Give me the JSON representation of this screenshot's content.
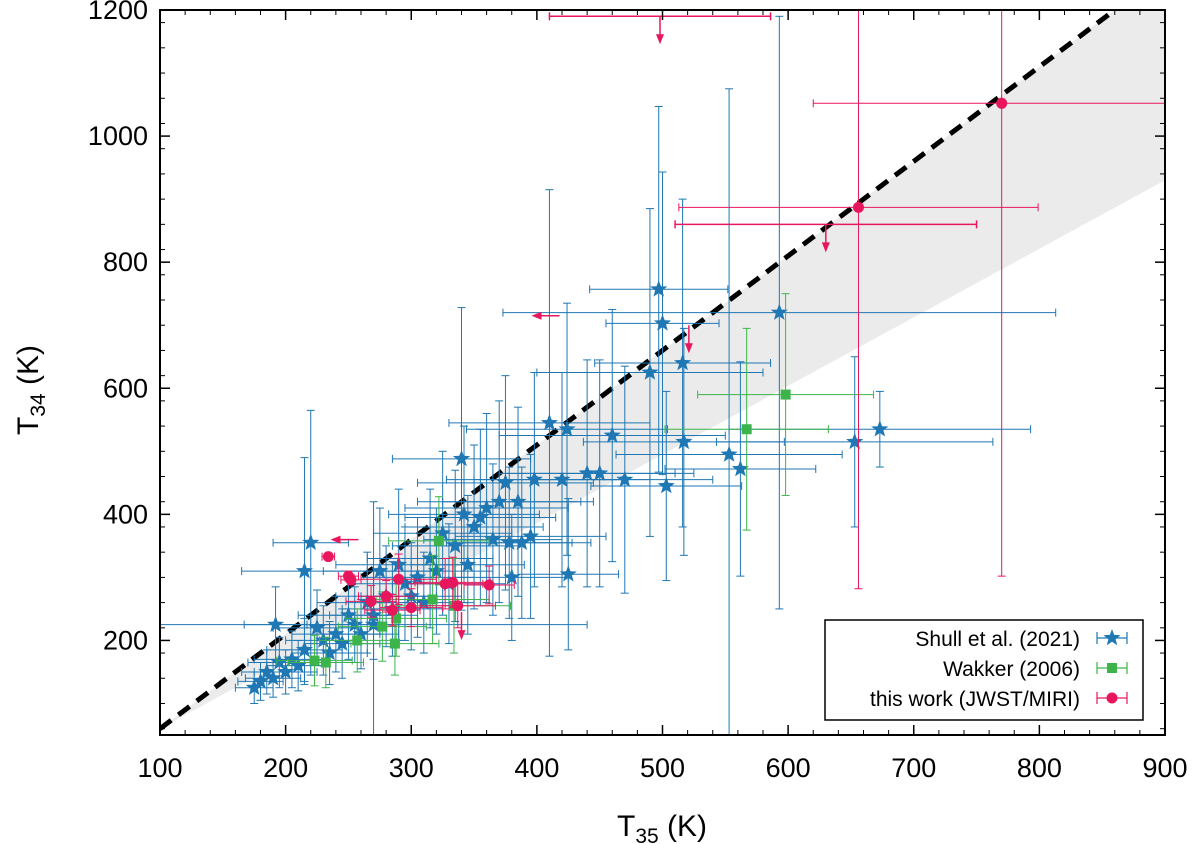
{
  "chart_data": {
    "type": "scatter",
    "xlabel": "T",
    "xlabel_sub": "35",
    "xlabel_unit": " (K)",
    "ylabel": "T",
    "ylabel_sub": "34",
    "ylabel_unit": " (K)",
    "xlim": [
      100,
      900
    ],
    "ylim": [
      50,
      1200
    ],
    "xticks": [
      100,
      200,
      300,
      400,
      500,
      600,
      700,
      800,
      900
    ],
    "yticks": [
      200,
      400,
      600,
      800,
      1000,
      1200
    ],
    "grid": false,
    "legend_position": "bottom-right",
    "fit_line": {
      "x": [
        100,
        860
      ],
      "y": [
        60,
        1200
      ],
      "color": "#000000",
      "style": "dashed"
    },
    "shaded_band": {
      "color": "#ebebeb",
      "upper": [
        [
          100,
          60
        ],
        [
          860,
          1200
        ],
        [
          900,
          1200
        ]
      ],
      "lower": [
        [
          100,
          60
        ],
        [
          900,
          930
        ]
      ]
    },
    "series": [
      {
        "name": "Shull et al. (2021)",
        "marker": "star",
        "color": "#1f77b4",
        "points": [
          {
            "x": 175,
            "y": 125,
            "xe": 15,
            "ye": 25
          },
          {
            "x": 180,
            "y": 135,
            "xe": 18,
            "ye": 30
          },
          {
            "x": 185,
            "y": 150,
            "xe": 20,
            "ye": 35
          },
          {
            "x": 190,
            "y": 140,
            "xe": 22,
            "ye": 30
          },
          {
            "x": 195,
            "y": 165,
            "xe": 25,
            "ye": 40
          },
          {
            "x": 192,
            "y": 225,
            "xe": 25,
            "ye": 60
          },
          {
            "x": 200,
            "y": 150,
            "xe": 25,
            "ye": 35
          },
          {
            "x": 205,
            "y": 170,
            "xe": 30,
            "ye": 45
          },
          {
            "x": 210,
            "y": 160,
            "xe": 25,
            "ye": 40
          },
          {
            "x": 215,
            "y": 185,
            "xe": 30,
            "ye": 50
          },
          {
            "x": 215,
            "y": 310,
            "xe": 50,
            "ye": 180
          },
          {
            "x": 220,
            "y": 355,
            "xe": 30,
            "ye": 210
          },
          {
            "x": 225,
            "y": 220,
            "xe": 35,
            "ye": 60
          },
          {
            "x": 230,
            "y": 200,
            "xe": 30,
            "ye": 55
          },
          {
            "x": 235,
            "y": 180,
            "xe": 30,
            "ye": 50
          },
          {
            "x": 240,
            "y": 210,
            "xe": 35,
            "ye": 60
          },
          {
            "x": 245,
            "y": 195,
            "xe": 30,
            "ye": 55
          },
          {
            "x": 250,
            "y": 240,
            "xe": 40,
            "ye": 70
          },
          {
            "x": 255,
            "y": 225,
            "xe": 35,
            "ye": 60
          },
          {
            "x": 260,
            "y": 210,
            "xe": 30,
            "ye": 55
          },
          {
            "x": 265,
            "y": 260,
            "xe": 40,
            "ye": 80
          },
          {
            "x": 270,
            "y": 240,
            "xe": 35,
            "ye": 70
          },
          {
            "x": 275,
            "y": 310,
            "xe": 45,
            "ye": 100
          },
          {
            "x": 280,
            "y": 270,
            "xe": 40,
            "ye": 80
          },
          {
            "x": 285,
            "y": 250,
            "xe": 40,
            "ye": 75
          },
          {
            "x": 290,
            "y": 320,
            "xe": 50,
            "ye": 120
          },
          {
            "x": 295,
            "y": 290,
            "xe": 45,
            "ye": 90
          },
          {
            "x": 300,
            "y": 270,
            "xe": 40,
            "ye": 85
          },
          {
            "x": 305,
            "y": 300,
            "xe": 45,
            "ye": 95
          },
          {
            "x": 310,
            "y": 260,
            "xe": 40,
            "ye": 80
          },
          {
            "x": 315,
            "y": 330,
            "xe": 50,
            "ye": 110
          },
          {
            "x": 320,
            "y": 310,
            "xe": 45,
            "ye": 100
          },
          {
            "x": 325,
            "y": 370,
            "xe": 55,
            "ye": 130
          },
          {
            "x": 330,
            "y": 290,
            "xe": 45,
            "ye": 95
          },
          {
            "x": 335,
            "y": 350,
            "xe": 50,
            "ye": 120
          },
          {
            "x": 340,
            "y": 488,
            "xe": 55,
            "ye": 240
          },
          {
            "x": 342,
            "y": 400,
            "xe": 60,
            "ye": 140
          },
          {
            "x": 345,
            "y": 320,
            "xe": 45,
            "ye": 110
          },
          {
            "x": 350,
            "y": 380,
            "xe": 55,
            "ye": 130
          },
          {
            "x": 355,
            "y": 395,
            "xe": 60,
            "ye": 140
          },
          {
            "x": 360,
            "y": 410,
            "xe": 65,
            "ye": 150
          },
          {
            "x": 365,
            "y": 360,
            "xe": 55,
            "ye": 120
          },
          {
            "x": 370,
            "y": 420,
            "xe": 65,
            "ye": 160
          },
          {
            "x": 375,
            "y": 450,
            "xe": 70,
            "ye": 170
          },
          {
            "x": 378,
            "y": 355,
            "xe": 50,
            "ye": 120
          },
          {
            "x": 380,
            "y": 300,
            "xe": 45,
            "ye": 100
          },
          {
            "x": 385,
            "y": 420,
            "xe": 60,
            "ye": 150
          },
          {
            "x": 388,
            "y": 355,
            "xe": 55,
            "ye": 120
          },
          {
            "x": 395,
            "y": 365,
            "xe": 60,
            "ye": 130
          },
          {
            "x": 398,
            "y": 455,
            "xe": 70,
            "ye": 170
          },
          {
            "x": 410,
            "y": 545,
            "xe": 80,
            "ye": 370
          },
          {
            "x": 424,
            "y": 535,
            "xe": 80,
            "ye": 200
          },
          {
            "x": 425,
            "y": 305,
            "xe": 40,
            "ye": 120
          },
          {
            "x": 420,
            "y": 455,
            "xe": 70,
            "ye": 170
          },
          {
            "x": 440,
            "y": 465,
            "xe": 70,
            "ye": 180
          },
          {
            "x": 450,
            "y": 465,
            "xe": 75,
            "ye": 180
          },
          {
            "x": 460,
            "y": 525,
            "xe": 90,
            "ye": 200
          },
          {
            "x": 470,
            "y": 455,
            "xe": 70,
            "ye": 180
          },
          {
            "x": 490,
            "y": 625,
            "xe": 90,
            "ye": 260
          },
          {
            "x": 497,
            "y": 757,
            "xe": 55,
            "ye": 290
          },
          {
            "x": 500,
            "y": 703,
            "xe": 45,
            "ye": 240
          },
          {
            "x": 503,
            "y": 445,
            "xe": 60,
            "ye": 150
          },
          {
            "x": 516,
            "y": 640,
            "xe": 70,
            "ye": 260
          },
          {
            "x": 517,
            "y": 515,
            "xe": 80,
            "ye": 180
          },
          {
            "x": 553,
            "y": 495,
            "xe": 90,
            "ye": 580
          },
          {
            "x": 562,
            "y": 472,
            "xe": 60,
            "ye": 170
          },
          {
            "x": 593,
            "y": 720,
            "xe": 220,
            "ye": 470
          },
          {
            "x": 653,
            "y": 515,
            "xe": 110,
            "ye": 135
          },
          {
            "x": 673,
            "y": 535,
            "xe": 120,
            "ye": 60
          },
          {
            "x": 270,
            "y": 225,
            "xe": 170,
            "ye": 195
          }
        ]
      },
      {
        "name": "Wakker (2006)",
        "marker": "square",
        "color": "#3cb44b",
        "points": [
          {
            "x": 223,
            "y": 168,
            "xe": 30,
            "ye": 40
          },
          {
            "x": 232,
            "y": 165,
            "xe": 30,
            "ye": 40
          },
          {
            "x": 257,
            "y": 200,
            "xe": 30,
            "ye": 50
          },
          {
            "x": 277,
            "y": 222,
            "xe": 35,
            "ye": 55
          },
          {
            "x": 287,
            "y": 195,
            "xe": 35,
            "ye": 50
          },
          {
            "x": 288,
            "y": 235,
            "xe": 40,
            "ye": 60
          },
          {
            "x": 317,
            "y": 265,
            "xe": 45,
            "ye": 70
          },
          {
            "x": 322,
            "y": 358,
            "xe": 40,
            "ye": 70
          },
          {
            "x": 334,
            "y": 255,
            "xe": 45,
            "ye": 75
          },
          {
            "x": 567,
            "y": 535,
            "xe": 65,
            "ye": 160
          },
          {
            "x": 598,
            "y": 590,
            "xe": 70,
            "ye": 160
          }
        ]
      },
      {
        "name": "this work (JWST/MIRI)",
        "marker": "circle",
        "color": "#e8175d",
        "points": [
          {
            "x": 234,
            "y": 333,
            "xe": 5,
            "ye": 5
          },
          {
            "x": 250,
            "y": 302,
            "xe": 8,
            "ye": 8
          },
          {
            "x": 252,
            "y": 296,
            "xe": 8,
            "ye": 8
          },
          {
            "x": 268,
            "y": 262,
            "xe": 20,
            "ye": 25
          },
          {
            "x": 280,
            "y": 270,
            "xe": 22,
            "ye": 25
          },
          {
            "x": 285,
            "y": 248,
            "xe": 22,
            "ye": 25
          },
          {
            "x": 290,
            "y": 297,
            "xe": 30,
            "ye": 40
          },
          {
            "x": 300,
            "y": 252,
            "xe": 25,
            "ye": 30
          },
          {
            "x": 327,
            "y": 290,
            "xe": 30,
            "ye": 40
          },
          {
            "x": 333,
            "y": 292,
            "xe": 30,
            "ye": 40
          },
          {
            "x": 337,
            "y": 255,
            "xe": 30,
            "ye": 35
          },
          {
            "x": 362,
            "y": 288,
            "xe": 20,
            "ye": 30
          },
          {
            "x": 656,
            "y": 887,
            "xe": 143,
            "ye": 605
          },
          {
            "x": 770,
            "y": 1052,
            "xe": 150,
            "ye": 750
          }
        ],
        "limits": [
          {
            "x": 498,
            "y": 1190,
            "xe": 88,
            "dir": "down"
          },
          {
            "x": 521,
            "y": 700,
            "xe": 0,
            "dir": "down"
          },
          {
            "x": 630,
            "y": 860,
            "xe": 120,
            "dir": "down"
          },
          {
            "x": 418,
            "y": 715,
            "xe": 0,
            "dir": "left"
          },
          {
            "x": 258,
            "y": 360,
            "xe": 0,
            "dir": "left"
          },
          {
            "x": 340,
            "y": 245,
            "xe": 0,
            "dir": "down"
          }
        ]
      }
    ]
  }
}
